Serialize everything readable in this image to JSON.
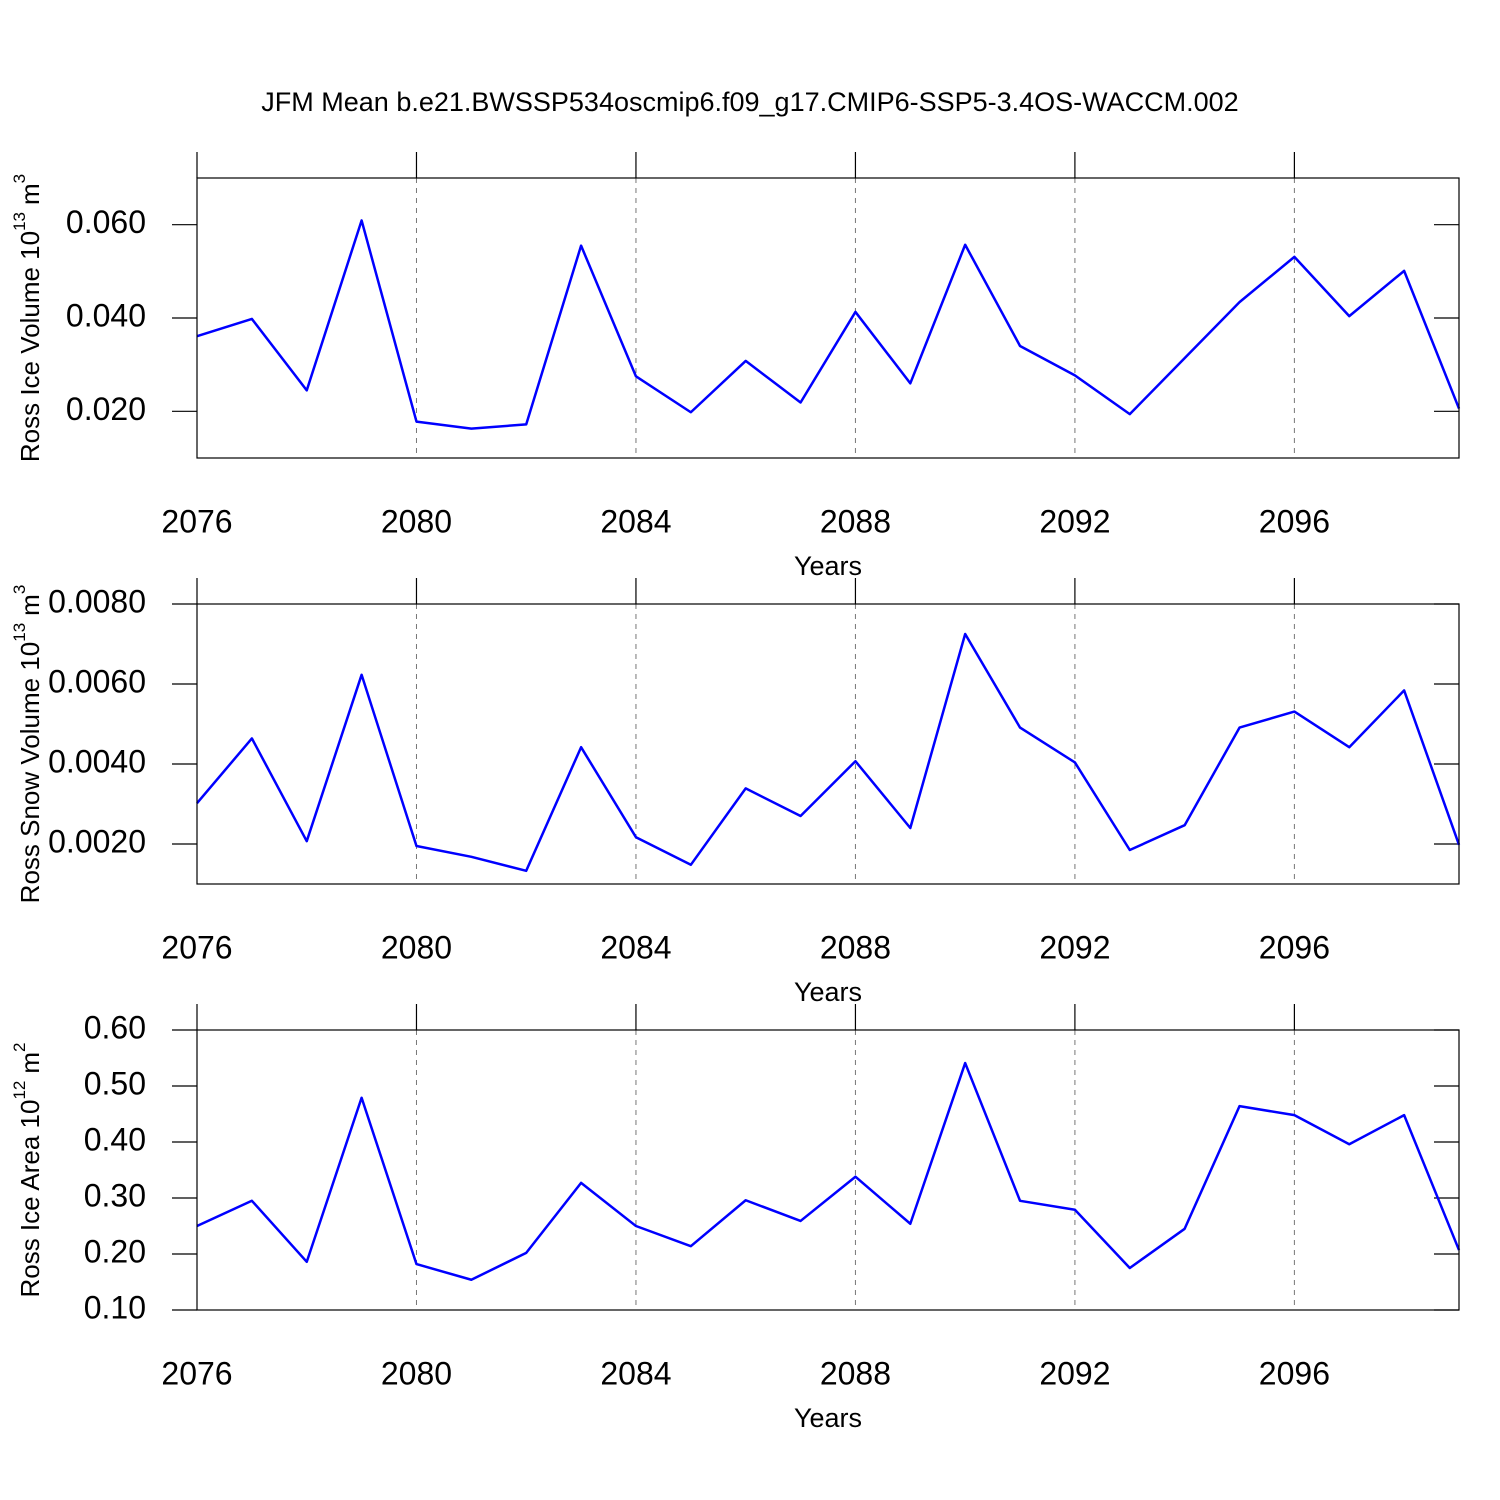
{
  "chart_data": [
    {
      "type": "line",
      "title": "JFM Mean b.e21.BWSSP534oscmip6.f09_g17.CMIP6-SSP5-3.4OS-WACCM.002",
      "x_label": "Years",
      "y_label": {
        "text": "Ross Ice Volume 10",
        "exp": "13",
        "unit": "m",
        "unit_exp": "3"
      },
      "x": [
        2076,
        2077,
        2078,
        2079,
        2080,
        2081,
        2082,
        2083,
        2084,
        2085,
        2086,
        2087,
        2088,
        2089,
        2090,
        2091,
        2092,
        2093,
        2094,
        2095,
        2096,
        2097,
        2098,
        2099
      ],
      "series": [
        {
          "color": "#0000ff",
          "values": [
            0.0361,
            0.0398,
            0.0245,
            0.0609,
            0.0178,
            0.0163,
            0.0172,
            0.0555,
            0.0275,
            0.0198,
            0.0308,
            0.0219,
            0.0413,
            0.026,
            0.0557,
            0.034,
            0.0277,
            0.0194,
            0.0314,
            0.0434,
            0.0531,
            0.0404,
            0.0501,
            0.0206
          ]
        }
      ],
      "xlim": [
        2076,
        2099
      ],
      "xticks": [
        2076,
        2080,
        2084,
        2088,
        2092,
        2096
      ],
      "ylim": [
        0.01,
        0.07
      ],
      "yticks": [
        {
          "value": 0.02,
          "label": "0.020"
        },
        {
          "value": 0.04,
          "label": "0.040"
        },
        {
          "value": 0.06,
          "label": "0.060"
        }
      ],
      "grid": "x"
    },
    {
      "type": "line",
      "x_label": "Years",
      "y_label": {
        "text": "Ross Snow Volume 10",
        "exp": "13",
        "unit": "m",
        "unit_exp": "3"
      },
      "x": [
        2076,
        2077,
        2078,
        2079,
        2080,
        2081,
        2082,
        2083,
        2084,
        2085,
        2086,
        2087,
        2088,
        2089,
        2090,
        2091,
        2092,
        2093,
        2094,
        2095,
        2096,
        2097,
        2098,
        2099
      ],
      "series": [
        {
          "color": "#0000ff",
          "values": [
            0.00302,
            0.00464,
            0.00207,
            0.00623,
            0.00195,
            0.00168,
            0.00133,
            0.00442,
            0.00217,
            0.00148,
            0.00339,
            0.0027,
            0.00407,
            0.0024,
            0.00725,
            0.00491,
            0.00404,
            0.00185,
            0.00247,
            0.00491,
            0.00531,
            0.00442,
            0.00584,
            0.00198
          ]
        }
      ],
      "xlim": [
        2076,
        2099
      ],
      "xticks": [
        2076,
        2080,
        2084,
        2088,
        2092,
        2096
      ],
      "ylim": [
        0.001,
        0.008
      ],
      "yticks": [
        {
          "value": 0.002,
          "label": "0.0020"
        },
        {
          "value": 0.004,
          "label": "0.0040"
        },
        {
          "value": 0.006,
          "label": "0.0060"
        },
        {
          "value": 0.008,
          "label": "0.0080"
        }
      ],
      "grid": "x"
    },
    {
      "type": "line",
      "x_label": "Years",
      "y_label": {
        "text": "Ross Ice Area 10",
        "exp": "12",
        "unit": "m",
        "unit_exp": "2"
      },
      "x": [
        2076,
        2077,
        2078,
        2079,
        2080,
        2081,
        2082,
        2083,
        2084,
        2085,
        2086,
        2087,
        2088,
        2089,
        2090,
        2091,
        2092,
        2093,
        2094,
        2095,
        2096,
        2097,
        2098,
        2099
      ],
      "series": [
        {
          "color": "#0000ff",
          "values": [
            0.25,
            0.295,
            0.186,
            0.479,
            0.182,
            0.154,
            0.202,
            0.327,
            0.25,
            0.214,
            0.296,
            0.259,
            0.338,
            0.254,
            0.541,
            0.295,
            0.279,
            0.175,
            0.245,
            0.464,
            0.448,
            0.396,
            0.448,
            0.207
          ]
        }
      ],
      "xlim": [
        2076,
        2099
      ],
      "xticks": [
        2076,
        2080,
        2084,
        2088,
        2092,
        2096
      ],
      "ylim": [
        0.1,
        0.6
      ],
      "yticks": [
        {
          "value": 0.1,
          "label": "0.10"
        },
        {
          "value": 0.2,
          "label": "0.20"
        },
        {
          "value": 0.3,
          "label": "0.30"
        },
        {
          "value": 0.4,
          "label": "0.40"
        },
        {
          "value": 0.5,
          "label": "0.50"
        },
        {
          "value": 0.6,
          "label": "0.60"
        }
      ],
      "grid": "x"
    }
  ]
}
